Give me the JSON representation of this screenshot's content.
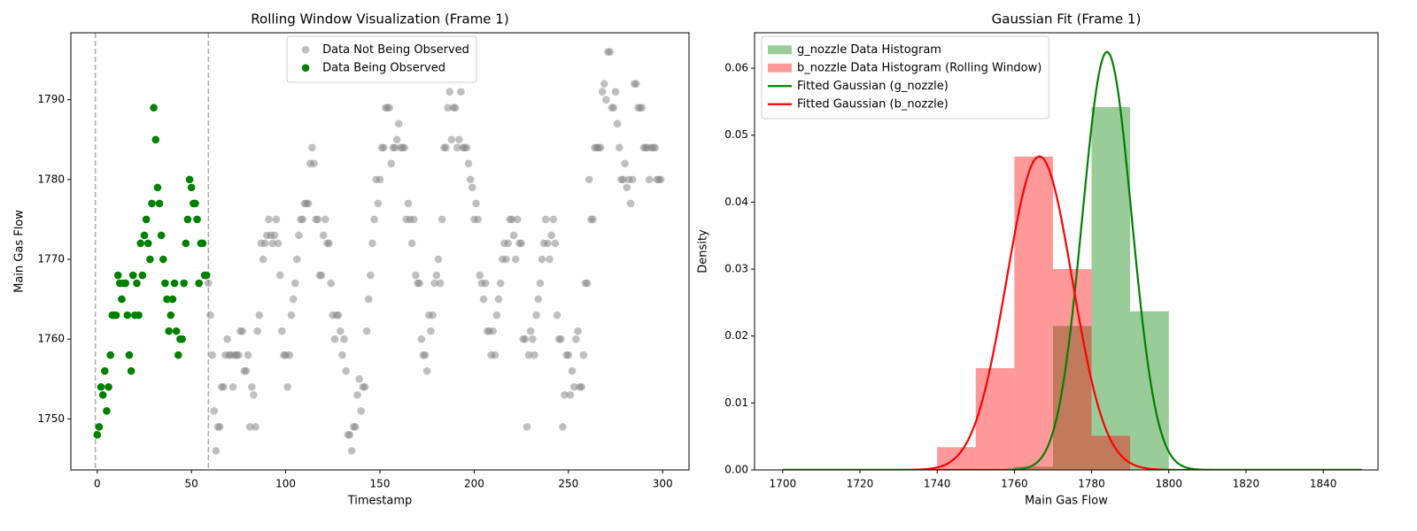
{
  "chart_data": [
    {
      "type": "scatter",
      "title": "Rolling Window Visualization (Frame 1)",
      "xlabel": "Timestamp",
      "ylabel": "Main Gas Flow",
      "xlim": [
        -14,
        314
      ],
      "ylim": [
        1743.6,
        1798.4
      ],
      "xticks": [
        0,
        50,
        100,
        150,
        200,
        250,
        300
      ],
      "yticks": [
        1750,
        1760,
        1770,
        1780,
        1790
      ],
      "vlines": [
        -1,
        59
      ],
      "vline_color": "#aaaaaa",
      "legend_loc": "upper center",
      "series": [
        {
          "name": "Data Not Being Observed",
          "color": "gray",
          "alpha": 0.5,
          "x": [
            59,
            60,
            61,
            62,
            63,
            64,
            65,
            66,
            67,
            68,
            69,
            70,
            71,
            72,
            73,
            74,
            75,
            76,
            77,
            78,
            79,
            80,
            81,
            82,
            83,
            84,
            85,
            86,
            87,
            88,
            89,
            90,
            91,
            92,
            93,
            94,
            95,
            96,
            97,
            98,
            99,
            100,
            101,
            102,
            103,
            104,
            105,
            106,
            107,
            108,
            109,
            110,
            111,
            112,
            113,
            114,
            115,
            116,
            117,
            118,
            119,
            120,
            121,
            122,
            123,
            124,
            125,
            126,
            127,
            128,
            129,
            130,
            131,
            132,
            133,
            134,
            135,
            136,
            137,
            138,
            139,
            140,
            141,
            142,
            143,
            144,
            145,
            146,
            147,
            148,
            149,
            150,
            151,
            152,
            153,
            154,
            155,
            156,
            157,
            158,
            159,
            160,
            161,
            162,
            163,
            164,
            165,
            166,
            167,
            168,
            169,
            170,
            171,
            172,
            173,
            174,
            175,
            176,
            177,
            178,
            179,
            180,
            181,
            182,
            183,
            184,
            185,
            186,
            187,
            188,
            189,
            190,
            191,
            192,
            193,
            194,
            195,
            196,
            197,
            198,
            199,
            200,
            201,
            202,
            203,
            204,
            205,
            206,
            207,
            208,
            209,
            210,
            211,
            212,
            213,
            214,
            215,
            216,
            217,
            218,
            219,
            220,
            221,
            222,
            223,
            224,
            225,
            226,
            227,
            228,
            229,
            230,
            231,
            232,
            233,
            234,
            235,
            236,
            237,
            238,
            239,
            240,
            241,
            242,
            243,
            244,
            245,
            246,
            247,
            248,
            249,
            250,
            251,
            252,
            253,
            254,
            255,
            256,
            257,
            258,
            259,
            260,
            261,
            262,
            263,
            264,
            265,
            266,
            267,
            268,
            269,
            270,
            271,
            272,
            273,
            274,
            275,
            276,
            277,
            278,
            279,
            280,
            281,
            282,
            283,
            284,
            285,
            286,
            287,
            288,
            289,
            290,
            291,
            292,
            293,
            294,
            295,
            296,
            297,
            298,
            299
          ],
          "values": [
            1767,
            1763,
            1758,
            1751,
            1746,
            1749,
            1749,
            1754,
            1754,
            1758,
            1760,
            1758,
            1758,
            1754,
            1758,
            1758,
            1758,
            1761,
            1761,
            1756,
            1756,
            1758,
            1749,
            1754,
            1753,
            1749,
            1761,
            1763,
            1772,
            1770,
            1772,
            1773,
            1775,
            1773,
            1772,
            1773,
            1775,
            1772,
            1768,
            1761,
            1758,
            1758,
            1754,
            1758,
            1763,
            1765,
            1767,
            1770,
            1773,
            1775,
            1775,
            1777,
            1777,
            1777,
            1782,
            1784,
            1782,
            1775,
            1775,
            1768,
            1768,
            1773,
            1775,
            1772,
            1772,
            1767,
            1763,
            1760,
            1763,
            1763,
            1761,
            1758,
            1760,
            1756,
            1748,
            1748,
            1746,
            1749,
            1749,
            1753,
            1755,
            1751,
            1754,
            1754,
            1761,
            1765,
            1768,
            1772,
            1775,
            1780,
            1777,
            1780,
            1784,
            1784,
            1789,
            1789,
            1789,
            1782,
            1784,
            1784,
            1785,
            1787,
            1784,
            1784,
            1784,
            1775,
            1777,
            1775,
            1772,
            1775,
            1768,
            1767,
            1767,
            1760,
            1758,
            1758,
            1756,
            1763,
            1761,
            1763,
            1767,
            1768,
            1770,
            1767,
            1775,
            1784,
            1784,
            1789,
            1791,
            1785,
            1789,
            1789,
            1784,
            1785,
            1791,
            1784,
            1784,
            1784,
            1782,
            1780,
            1779,
            1775,
            1777,
            1775,
            1768,
            1767,
            1765,
            1767,
            1761,
            1761,
            1758,
            1761,
            1758,
            1763,
            1765,
            1767,
            1770,
            1772,
            1770,
            1772,
            1775,
            1775,
            1773,
            1770,
            1775,
            1772,
            1772,
            1760,
            1760,
            1749,
            1758,
            1761,
            1760,
            1758,
            1763,
            1765,
            1767,
            1770,
            1772,
            1775,
            1772,
            1770,
            1773,
            1775,
            1772,
            1763,
            1760,
            1760,
            1749,
            1753,
            1758,
            1758,
            1753,
            1756,
            1754,
            1760,
            1761,
            1754,
            1754,
            1758,
            1767,
            1767,
            1780,
            1775,
            1775,
            1784,
            1784,
            1784,
            1784,
            1791,
            1792,
            1790,
            1796,
            1796,
            1789,
            1789,
            1791,
            1787,
            1784,
            1780,
            1780,
            1782,
            1779,
            1780,
            1777,
            1780,
            1792,
            1792,
            1789,
            1789,
            1789,
            1784,
            1784,
            1784,
            1780,
            1784,
            1784,
            1784,
            1780,
            1780,
            1780
          ]
        },
        {
          "name": "Data Being Observed",
          "color": "green",
          "alpha": 1,
          "x": [
            0,
            1,
            2,
            3,
            4,
            5,
            6,
            7,
            8,
            9,
            10,
            11,
            12,
            13,
            14,
            15,
            16,
            17,
            18,
            19,
            20,
            21,
            22,
            23,
            24,
            25,
            26,
            27,
            28,
            29,
            30,
            31,
            32,
            33,
            34,
            35,
            36,
            37,
            38,
            39,
            40,
            41,
            42,
            43,
            44,
            45,
            46,
            47,
            48,
            49,
            50,
            51,
            52,
            53,
            54,
            55,
            56,
            57,
            58
          ],
          "values": [
            1748,
            1749,
            1754,
            1753,
            1756,
            1751,
            1754,
            1758,
            1763,
            1763,
            1763,
            1768,
            1767,
            1765,
            1767,
            1767,
            1763,
            1758,
            1756,
            1768,
            1763,
            1767,
            1763,
            1772,
            1768,
            1773,
            1775,
            1772,
            1770,
            1777,
            1789,
            1785,
            1779,
            1777,
            1773,
            1770,
            1767,
            1765,
            1761,
            1763,
            1765,
            1767,
            1761,
            1758,
            1760,
            1760,
            1767,
            1772,
            1775,
            1780,
            1779,
            1777,
            1777,
            1775,
            1767,
            1772,
            1772,
            1768,
            1768
          ]
        }
      ]
    },
    {
      "type": "histogram",
      "title": "Gaussian Fit (Frame 1)",
      "xlabel": "Main Gas Flow",
      "ylabel": "Density",
      "xlim": [
        1692.7,
        1854.2
      ],
      "ylim": [
        0,
        0.0653
      ],
      "xticks": [
        1700,
        1720,
        1740,
        1760,
        1780,
        1800,
        1820,
        1840
      ],
      "yticks": [
        {
          "value": 0,
          "label": "0.00"
        },
        {
          "value": 0.01,
          "label": "0.01"
        },
        {
          "value": 0.02,
          "label": "0.02"
        },
        {
          "value": 0.03,
          "label": "0.03"
        },
        {
          "value": 0.04,
          "label": "0.04"
        },
        {
          "value": 0.05,
          "label": "0.05"
        },
        {
          "value": 0.06,
          "label": "0.06"
        }
      ],
      "legend_loc": "upper left",
      "series": [
        {
          "kind": "hist",
          "name": "g_nozzle Data Histogram",
          "color": "green",
          "alpha": 0.4,
          "bins": [
            1760,
            1770,
            1780,
            1790,
            1800
          ],
          "values": [
            0.0005,
            0.0215,
            0.0542,
            0.0237
          ]
        },
        {
          "kind": "hist",
          "name": "b_nozzle Data Histogram (Rolling Window)",
          "color": "red",
          "alpha": 0.4,
          "bins": [
            1740,
            1750,
            1760,
            1770,
            1780,
            1790
          ],
          "values": [
            0.0034,
            0.0152,
            0.0468,
            0.03,
            0.0051
          ]
        },
        {
          "kind": "gaussian",
          "name": "Fitted Gaussian (g_nozzle)",
          "color": "green",
          "mean": 1784,
          "std": 6.39,
          "x_range": [
            1700,
            1850
          ]
        },
        {
          "kind": "gaussian",
          "name": "Fitted Gaussian (b_nozzle)",
          "color": "red",
          "mean": 1766.5,
          "std": 8.52,
          "x_range": [
            1700,
            1850
          ]
        }
      ]
    }
  ]
}
